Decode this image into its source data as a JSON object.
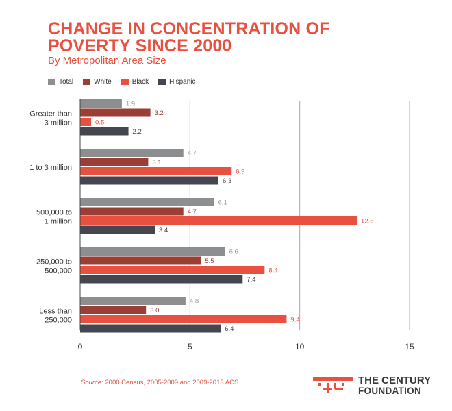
{
  "chart_data": {
    "type": "bar",
    "orientation": "horizontal",
    "title_lines": [
      "CHANGE IN CONCENTRATION OF",
      "POVERTY SINCE 2000"
    ],
    "subtitle": "By Metropolitan Area Size",
    "categories": [
      [
        "Greater than",
        "3 million"
      ],
      [
        "1 to 3 million"
      ],
      [
        "500,000 to",
        "1 million"
      ],
      [
        "250,000 to",
        "500,000"
      ],
      [
        "Less than",
        "250,000"
      ]
    ],
    "series": [
      {
        "name": "Total",
        "color": "#8d8e90",
        "label_color": "#9a9a9a",
        "values": [
          1.9,
          4.7,
          6.1,
          6.6,
          4.8
        ]
      },
      {
        "name": "White",
        "color": "#9b3f36",
        "label_color": "#9b3f36",
        "values": [
          3.2,
          3.1,
          4.7,
          5.5,
          3.0
        ]
      },
      {
        "name": "Black",
        "color": "#e8503f",
        "label_color": "#e8503f",
        "values": [
          0.5,
          6.9,
          12.6,
          8.4,
          9.4
        ]
      },
      {
        "name": "Hispanic",
        "color": "#454750",
        "label_color": "#454750",
        "values": [
          2.2,
          6.3,
          3.4,
          7.4,
          6.4
        ]
      }
    ],
    "value_labels": [
      [
        "1.9",
        "3.2",
        "0.5",
        "2.2"
      ],
      [
        "4.7",
        "3.1",
        "6.9",
        "6.3"
      ],
      [
        "6.1",
        "4.7",
        "12.6",
        "3.4"
      ],
      [
        "6.6",
        "5.5",
        "8.4",
        "7.4"
      ],
      [
        "4.8",
        "3.0",
        "9.4",
        "6.4"
      ]
    ],
    "xlim": [
      0,
      15
    ],
    "xticks": [
      0,
      5,
      10,
      15
    ],
    "xtick_labels": [
      "0",
      "5",
      "10",
      "15"
    ],
    "grid": true,
    "legend_position": "top-left"
  },
  "source": {
    "prefix": "Source:",
    "text": " 2000 Census, 2005-2009 and 2009-2013 ACS."
  },
  "logo": {
    "line1": "THE CENTURY",
    "line2": "FOUNDATION",
    "icon": "century-foundation-logo-icon",
    "color": "#e8503f"
  }
}
